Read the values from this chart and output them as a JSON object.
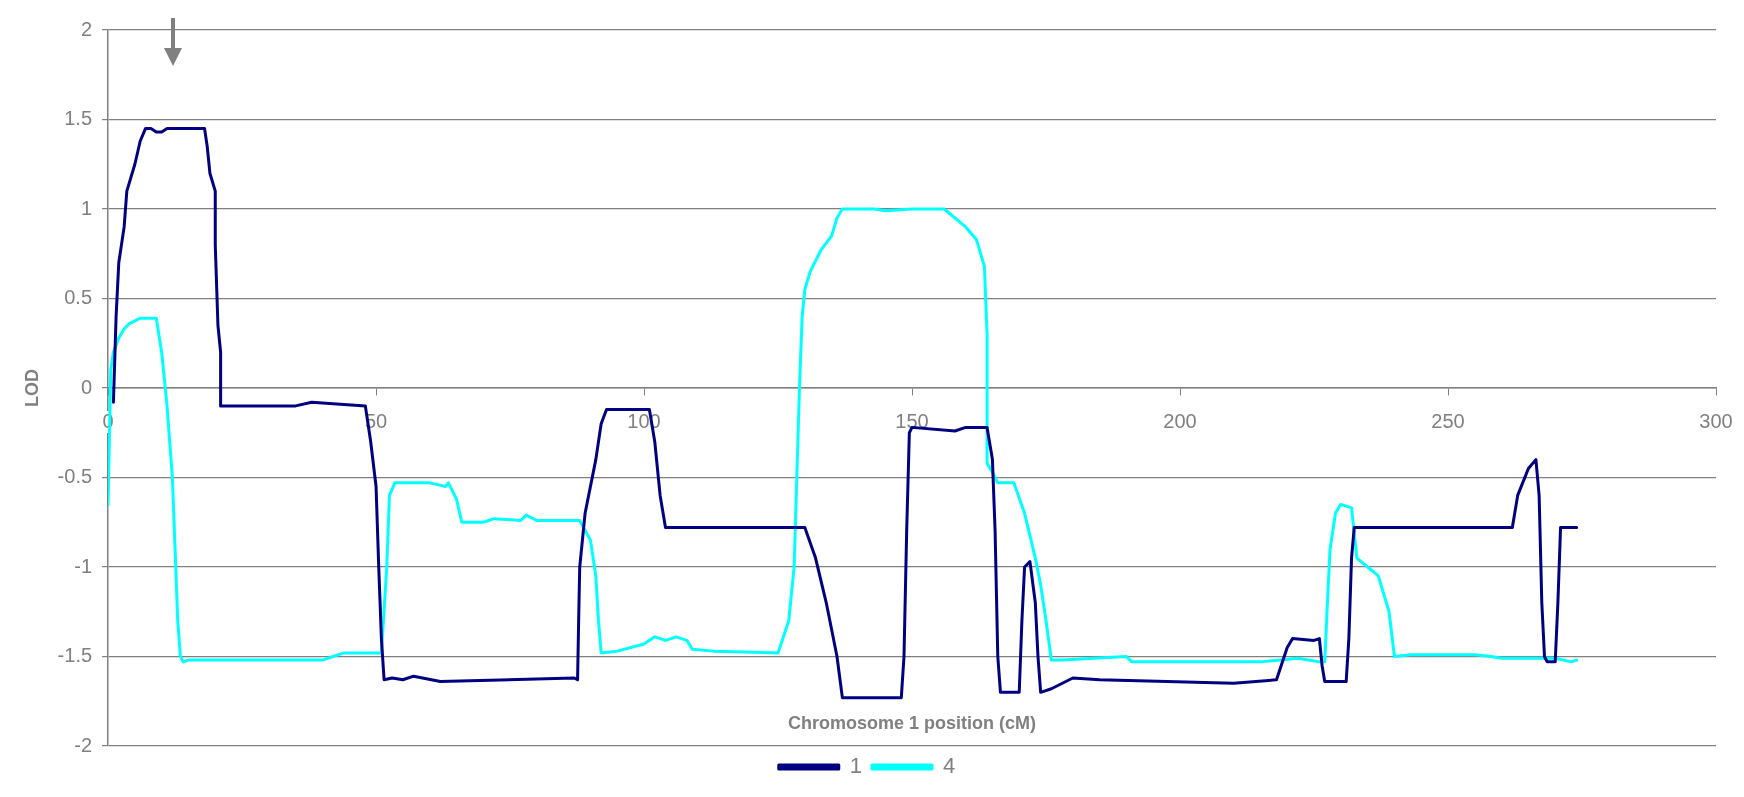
{
  "chart_data": {
    "type": "line",
    "xlabel": "Chromosome 1 position (cM)",
    "ylabel": "LOD",
    "xlim": [
      0,
      300
    ],
    "xticks": [
      0,
      50,
      100,
      150,
      200,
      250,
      300
    ],
    "ylim": [
      -2,
      2
    ],
    "yticks": [
      -2,
      -1.5,
      -1,
      -0.5,
      0,
      0.5,
      1,
      1.5,
      2
    ],
    "grid": "y",
    "legend": "bottom",
    "marker": "none",
    "line_style": "solid",
    "series": [
      {
        "name": "1",
        "color": "#000080",
        "x": [
          1,
          1.5,
          2,
          3,
          3.5,
          5,
          6,
          7,
          8,
          9,
          10,
          11,
          18,
          18.5,
          19,
          20,
          20,
          20.5,
          21,
          21,
          35,
          38,
          48,
          49,
          50,
          50.5,
          51,
          51.5,
          53,
          55,
          57,
          62,
          87,
          87.6,
          87.8,
          88,
          89,
          91,
          92,
          93,
          101,
          102,
          103,
          104,
          130,
          132,
          134,
          136,
          137,
          148,
          148.5,
          149,
          149.5,
          150,
          158,
          160,
          164,
          165,
          165.5,
          166,
          166.5,
          170,
          170.5,
          171,
          172,
          173,
          173.5,
          174,
          176,
          180,
          185,
          210,
          218,
          220,
          221,
          225,
          226,
          226.5,
          227,
          231,
          231.5,
          232,
          232.5,
          262,
          263,
          265,
          266.4,
          267,
          267.5,
          268,
          268.5,
          270,
          270.5,
          271,
          274
        ],
        "values": [
          -0.08,
          0.4,
          0.7,
          0.9,
          1.1,
          1.25,
          1.38,
          1.45,
          1.45,
          1.43,
          1.43,
          1.45,
          1.45,
          1.35,
          1.2,
          1.1,
          0.8,
          0.35,
          0.2,
          -0.1,
          -0.1,
          -0.08,
          -0.1,
          -0.3,
          -0.55,
          -1.0,
          -1.4,
          -1.63,
          -1.62,
          -1.63,
          -1.61,
          -1.64,
          -1.62,
          -1.63,
          -1.3,
          -1.0,
          -0.7,
          -0.4,
          -0.2,
          -0.12,
          -0.12,
          -0.3,
          -0.6,
          -0.78,
          -0.78,
          -0.95,
          -1.2,
          -1.5,
          -1.73,
          -1.73,
          -1.5,
          -0.8,
          -0.25,
          -0.22,
          -0.24,
          -0.22,
          -0.22,
          -0.4,
          -0.8,
          -1.5,
          -1.7,
          -1.7,
          -1.3,
          -1.0,
          -0.97,
          -1.2,
          -1.5,
          -1.7,
          -1.68,
          -1.62,
          -1.63,
          -1.65,
          -1.63,
          -1.45,
          -1.4,
          -1.41,
          -1.4,
          -1.55,
          -1.64,
          -1.64,
          -1.4,
          -0.95,
          -0.78,
          -0.78,
          -0.6,
          -0.45,
          -0.4,
          -0.6,
          -1.2,
          -1.5,
          -1.53,
          -1.53,
          -1.2,
          -0.78,
          -0.78
        ]
      },
      {
        "name": "4",
        "color": "#00ffff",
        "x": [
          0,
          0.3,
          0.5,
          1,
          2,
          3,
          4,
          6,
          9,
          10,
          11,
          12,
          12.5,
          13,
          13.5,
          14,
          15,
          40,
          42,
          44,
          51,
          52,
          52.5,
          53.5,
          60,
          63,
          63.5,
          65,
          66,
          70,
          72,
          77,
          78,
          80,
          88,
          90,
          91,
          91.5,
          92,
          95,
          100,
          102,
          104,
          106,
          108,
          109,
          113,
          125,
          127,
          128,
          128.5,
          129,
          129.5,
          130,
          131,
          133,
          135,
          136,
          137,
          143,
          145,
          150,
          156,
          160,
          162,
          163.5,
          164,
          164,
          165,
          166,
          169,
          171,
          173,
          174,
          175,
          176,
          178,
          184,
          190,
          191,
          205,
          215,
          222,
          226,
          227,
          227.5,
          228,
          229,
          230,
          232,
          233,
          235,
          237,
          238,
          239,
          240,
          243,
          255,
          258,
          260,
          270,
          273,
          274
        ],
        "values": [
          -0.65,
          -0.2,
          0.1,
          0.2,
          0.28,
          0.33,
          0.36,
          0.39,
          0.39,
          0.2,
          -0.1,
          -0.5,
          -0.9,
          -1.3,
          -1.5,
          -1.53,
          -1.52,
          -1.52,
          -1.5,
          -1.48,
          -1.48,
          -1.0,
          -0.6,
          -0.53,
          -0.53,
          -0.55,
          -0.53,
          -0.62,
          -0.75,
          -0.75,
          -0.73,
          -0.74,
          -0.71,
          -0.74,
          -0.74,
          -0.85,
          -1.05,
          -1.3,
          -1.48,
          -1.47,
          -1.43,
          -1.39,
          -1.41,
          -1.39,
          -1.41,
          -1.46,
          -1.47,
          -1.48,
          -1.3,
          -1.0,
          -0.5,
          0,
          0.4,
          0.55,
          0.65,
          0.77,
          0.85,
          0.95,
          1.0,
          1.0,
          0.99,
          1.0,
          1.0,
          0.9,
          0.83,
          0.68,
          0.3,
          -0.42,
          -0.47,
          -0.53,
          -0.53,
          -0.7,
          -0.95,
          -1.1,
          -1.3,
          -1.52,
          -1.52,
          -1.51,
          -1.5,
          -1.53,
          -1.53,
          -1.53,
          -1.51,
          -1.53,
          -1.53,
          -1.2,
          -0.9,
          -0.7,
          -0.65,
          -0.67,
          -0.95,
          -1.0,
          -1.05,
          -1.15,
          -1.25,
          -1.5,
          -1.49,
          -1.49,
          -1.5,
          -1.51,
          -1.51,
          -1.53,
          -1.52
        ]
      }
    ]
  }
}
